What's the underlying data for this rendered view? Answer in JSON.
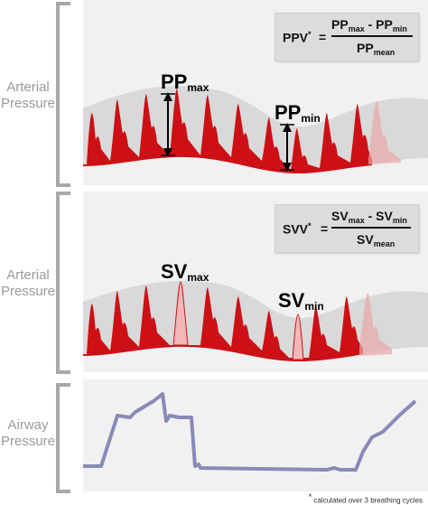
{
  "panels": {
    "ppv": {
      "side_label_line1": "Arterial",
      "side_label_line2": "Pressure",
      "formula_lhs": "PPV",
      "formula_star": "*",
      "formula_eq": "=",
      "num_a": "PP",
      "num_a_sub": "max",
      "num_op": "-",
      "num_b": "PP",
      "num_b_sub": "min",
      "den": "PP",
      "den_sub": "mean",
      "max_label": "PP",
      "max_sub": "max",
      "min_label": "PP",
      "min_sub": "min"
    },
    "svv": {
      "side_label_line1": "Arterial",
      "side_label_line2": "Pressure",
      "formula_lhs": "SVV",
      "formula_star": "*",
      "formula_eq": "=",
      "num_a": "SV",
      "num_a_sub": "max",
      "num_op": "-",
      "num_b": "SV",
      "num_b_sub": "min",
      "den": "SV",
      "den_sub": "mean",
      "max_label": "SV",
      "max_sub": "max",
      "min_label": "SV",
      "min_sub": "min"
    },
    "airway": {
      "side_label_line1": "Airway",
      "side_label_line2": "Pressure"
    }
  },
  "footnote_star": "*",
  "footnote_text": "calculated over 3 breathing cycles",
  "colors": {
    "waveform": "#cc1016",
    "waveform_faded": "#e8a7a7",
    "envelope": "#d9d9d9",
    "airway_line": "#8a8ab8",
    "bracket": "#a8a8a8"
  }
}
